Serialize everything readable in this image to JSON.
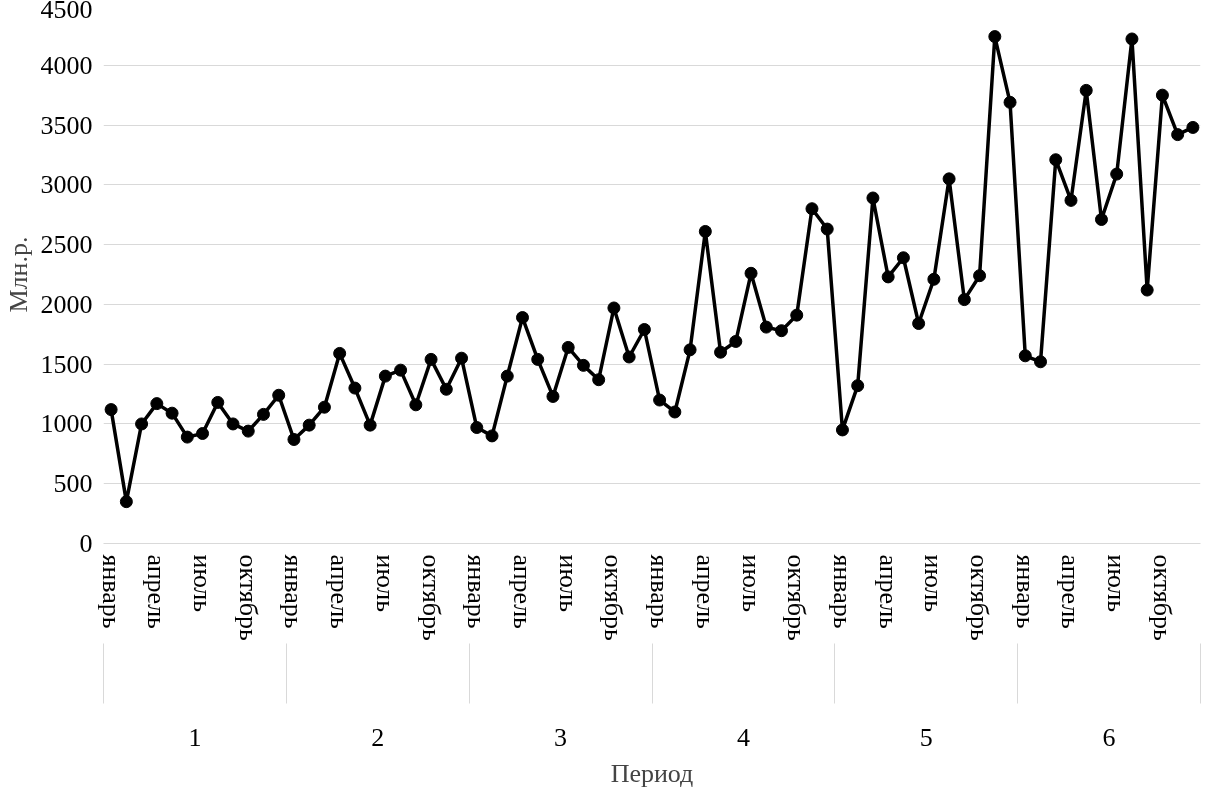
{
  "chart_data": {
    "type": "line",
    "xlabel": "Период",
    "ylabel": "Млн.р.",
    "categories": [
      "январь",
      null,
      null,
      "апрель",
      null,
      null,
      "июль",
      null,
      null,
      "октябрь",
      null,
      null,
      "январь",
      null,
      null,
      "апрель",
      null,
      null,
      "июль",
      null,
      null,
      "октябрь",
      null,
      null,
      "январь",
      null,
      null,
      "апрель",
      null,
      null,
      "июль",
      null,
      null,
      "октябрь",
      null,
      null,
      "январь",
      null,
      null,
      "апрель",
      null,
      null,
      "июль",
      null,
      null,
      "октябрь",
      null,
      null,
      "январь",
      null,
      null,
      "апрель",
      null,
      null,
      "июль",
      null,
      null,
      "октябрь",
      null,
      null,
      "январь",
      null,
      null,
      "апрель",
      null,
      null,
      "июль",
      null,
      null,
      "октябрь",
      null,
      null
    ],
    "series": [
      {
        "color": "#000000",
        "values": [
          1120,
          350,
          1000,
          1170,
          1090,
          890,
          920,
          1180,
          1000,
          940,
          1080,
          1240,
          870,
          990,
          1140,
          1590,
          1300,
          990,
          1400,
          1450,
          1160,
          1540,
          1290,
          1550,
          970,
          900,
          1400,
          1890,
          1540,
          1230,
          1640,
          1490,
          1370,
          1970,
          1560,
          1790,
          1200,
          1100,
          1620,
          2610,
          1600,
          1690,
          2260,
          1810,
          1780,
          1910,
          2800,
          2630,
          950,
          1320,
          2890,
          2230,
          2390,
          1840,
          2210,
          3050,
          2040,
          2240,
          4240,
          3690,
          1570,
          1520,
          3210,
          2870,
          3790,
          2710,
          3090,
          4220,
          2120,
          3750,
          3420,
          3480
        ]
      }
    ],
    "annotations": [
      "1",
      "2",
      "3",
      "4",
      "5",
      "6"
    ],
    "ylim": [
      0,
      4500
    ],
    "yticks": [
      0,
      500,
      1000,
      1500,
      2000,
      2500,
      3000,
      3500,
      4000,
      4500
    ],
    "grid": "y",
    "marker": "circle",
    "line_style": "solid"
  }
}
